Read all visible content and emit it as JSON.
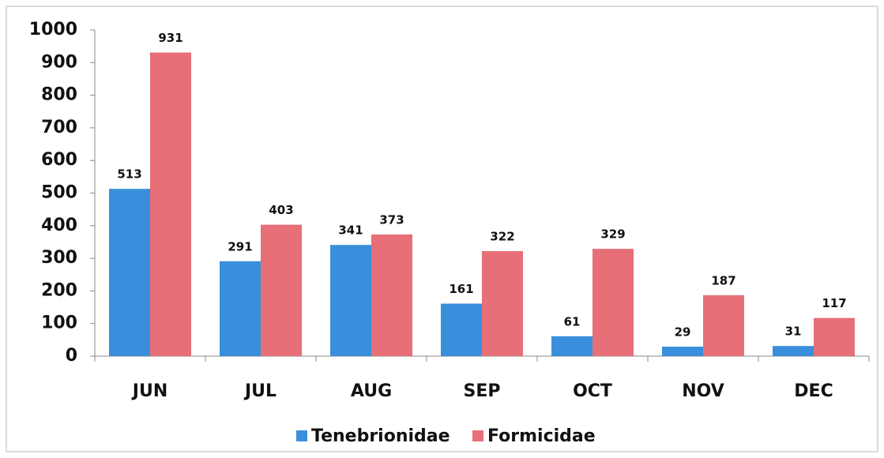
{
  "chart_data": {
    "type": "bar",
    "categories": [
      "JUN",
      "JUL",
      "AUG",
      "SEP",
      "OCT",
      "NOV",
      "DEC"
    ],
    "series": [
      {
        "name": "Tenebrionidae",
        "color": "#3a8fdc",
        "values": [
          513,
          291,
          341,
          161,
          61,
          29,
          31
        ]
      },
      {
        "name": "Formicidae",
        "color": "#e66f78",
        "values": [
          931,
          403,
          373,
          322,
          329,
          187,
          117
        ]
      }
    ],
    "ylim": [
      0,
      1000
    ],
    "yticks": [
      0,
      100,
      200,
      300,
      400,
      500,
      600,
      700,
      800,
      900,
      1000
    ],
    "grid": false,
    "legend": "bottom"
  }
}
